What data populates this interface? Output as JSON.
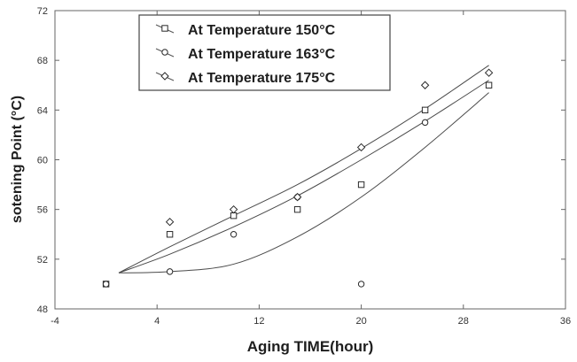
{
  "chart_data": {
    "type": "scatter",
    "xlabel": "Aging TIME(hour)",
    "ylabel": "sotening Point (°C)",
    "xlim": [
      -4,
      36
    ],
    "ylim": [
      48,
      72
    ],
    "xticks": [
      -4,
      4,
      12,
      20,
      28,
      36
    ],
    "yticks": [
      48,
      52,
      56,
      60,
      64,
      68,
      72
    ],
    "grid": false,
    "legend_position": "top-left",
    "colors": {
      "ink": "#2a2a2a",
      "axis": "#666666",
      "background": "#ffffff"
    },
    "series": [
      {
        "name": "At Temperature 150°C",
        "marker": "square",
        "x": [
          0,
          5,
          10,
          15,
          20,
          25,
          30
        ],
        "y": [
          50,
          54,
          55.5,
          56,
          58,
          64,
          66
        ],
        "fit_curve": [
          [
            1,
            50.9
          ],
          [
            5,
            52.4
          ],
          [
            10,
            54.6
          ],
          [
            15,
            57.1
          ],
          [
            20,
            60
          ],
          [
            25,
            63.1
          ],
          [
            30,
            66.4
          ]
        ]
      },
      {
        "name": "At Temperature 163°C",
        "marker": "circle",
        "x": [
          0,
          5,
          10,
          15,
          20,
          25
        ],
        "y": [
          50,
          51,
          54,
          57,
          50,
          63
        ],
        "fit_curve": [
          [
            1,
            50.9
          ],
          [
            5,
            51
          ],
          [
            10,
            51.6
          ],
          [
            15,
            53.8
          ],
          [
            20,
            57
          ],
          [
            25,
            61
          ],
          [
            30,
            65.4
          ]
        ]
      },
      {
        "name": "At Temperature 175°C",
        "marker": "diamond",
        "x": [
          5,
          10,
          15,
          20,
          25,
          30
        ],
        "y": [
          55,
          56,
          57,
          61,
          66,
          67
        ],
        "fit_curve": [
          [
            1,
            50.9
          ],
          [
            5,
            53
          ],
          [
            10,
            55.5
          ],
          [
            15,
            58
          ],
          [
            20,
            60.9
          ],
          [
            25,
            64.1
          ],
          [
            30,
            67.6
          ]
        ]
      }
    ]
  }
}
